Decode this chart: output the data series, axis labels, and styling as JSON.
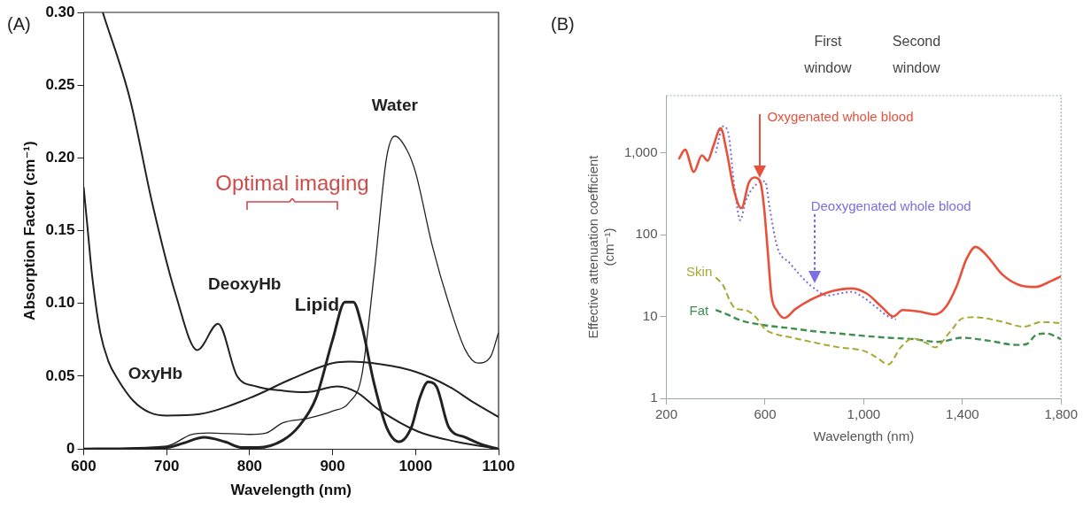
{
  "chart_data": [
    {
      "type": "line",
      "title": "(A)",
      "xlabel": "Wavelength (nm)",
      "ylabel": "Absorption Factor (cm⁻¹)",
      "xlim": [
        600,
        1100
      ],
      "xticks": [
        600,
        700,
        800,
        900,
        1000,
        1100
      ],
      "ylim": [
        0,
        0.3
      ],
      "yticks": [
        0,
        0.05,
        {
          "value": 0.1,
          "label": "0.10"
        },
        0.15,
        {
          "value": 0.2,
          "label": "0.20"
        },
        0.25,
        {
          "value": 0.3,
          "label": "0.30"
        }
      ],
      "grid": false,
      "legend": false,
      "marker": "none",
      "annotations": [
        "Optimal imaging"
      ],
      "series": [
        {
          "name": "DeoxyHb",
          "color": "#222222",
          "x": [
            623,
            656,
            683,
            711,
            737,
            762,
            785,
            808,
            841,
            868,
            906,
            929,
            956,
            1003,
            1049,
            1100
          ],
          "values": [
            0.3,
            0.24,
            0.168,
            0.106,
            0.068,
            0.086,
            0.05,
            0.043,
            0.04,
            0.039,
            0.043,
            0.039,
            0.027,
            0.012,
            0.005,
            0
          ]
        },
        {
          "name": "OxyHb",
          "color": "#222222",
          "x": [
            600,
            605,
            610,
            620,
            630,
            640,
            660,
            680,
            700,
            740,
            800,
            850,
            900,
            920,
            960,
            1000,
            1040,
            1070,
            1100
          ],
          "values": [
            0.18,
            0.15,
            0.12,
            0.08,
            0.06,
            0.049,
            0.033,
            0.025,
            0.023,
            0.024,
            0.035,
            0.048,
            0.059,
            0.06,
            0.058,
            0.053,
            0.043,
            0.032,
            0.022
          ]
        },
        {
          "name": "Water",
          "color": "#222222",
          "x": [
            600,
            700,
            730,
            750,
            800,
            820,
            840,
            870,
            900,
            920,
            935,
            950,
            965,
            975,
            990,
            1000,
            1020,
            1040,
            1060,
            1075,
            1090,
            1100
          ],
          "values": [
            0,
            0.002,
            0.01,
            0.011,
            0.01,
            0.011,
            0.018,
            0.021,
            0.026,
            0.032,
            0.05,
            0.12,
            0.2,
            0.215,
            0.205,
            0.19,
            0.14,
            0.1,
            0.068,
            0.059,
            0.063,
            0.08
          ]
        },
        {
          "name": "Lipid",
          "color": "#222222",
          "x": [
            600,
            700,
            720,
            745,
            770,
            790,
            810,
            840,
            860,
            880,
            900,
            915,
            925,
            935,
            950,
            965,
            980,
            995,
            1005,
            1015,
            1025,
            1040,
            1060,
            1080,
            1100
          ],
          "values": [
            0,
            0.001,
            0.004,
            0.008,
            0.005,
            0.001,
            0.001,
            0.006,
            0.016,
            0.035,
            0.075,
            0.101,
            0.101,
            0.085,
            0.045,
            0.015,
            0.005,
            0.015,
            0.035,
            0.046,
            0.043,
            0.015,
            0.008,
            0.003,
            0
          ]
        }
      ]
    },
    {
      "type": "line",
      "title": "(B)",
      "xlabel": "Wavelength (nm)",
      "ylabel": "Effective attenuation coefficient (cm⁻¹)",
      "xlim": [
        200,
        1800
      ],
      "xticks": [
        200,
        600,
        {
          "value": 1000,
          "label": "1,000"
        },
        {
          "value": 1400,
          "label": "1,400"
        },
        {
          "value": 1800,
          "label": "1,800"
        }
      ],
      "ylim": [
        1,
        5000
      ],
      "yticks": [
        1,
        10,
        100,
        {
          "value": 1000,
          "label": "1,000"
        }
      ],
      "log": "y",
      "grid": false,
      "legend": false,
      "marker": "none",
      "annotations": [
        "First window",
        "Second window"
      ],
      "series": [
        {
          "name": "Oxygenated whole blood",
          "color": "#e8503a",
          "line_style": "solid",
          "x": [
            250,
            276,
            311,
            344,
            367,
            390,
            420,
            443,
            474,
            504,
            534,
            557,
            580,
            595,
            610,
            626,
            648,
            679,
            724,
            785,
            861,
            952,
            1013,
            1074,
            1120,
            1158,
            1226,
            1287,
            1332,
            1378,
            1416,
            1454,
            1500,
            1560,
            1636,
            1697,
            1758,
            1800
          ],
          "values": [
            835,
            1090,
            585,
            930,
            800,
            1200,
            2000,
            1090,
            350,
            210,
            430,
            500,
            450,
            230,
            68,
            18,
            11.8,
            9.6,
            12.4,
            16,
            20,
            22,
            19,
            13,
            10,
            12,
            11.5,
            10.6,
            13,
            24,
            50,
            71,
            55,
            33,
            24,
            23,
            27,
            31
          ]
        },
        {
          "name": "Deoxygenated whole blood",
          "color": "#7a6ee0",
          "line_style": "dotted",
          "x": [
            400,
            430,
            450,
            475,
            500,
            520,
            560,
            600,
            620,
            650,
            700,
            760,
            800,
            850,
            900,
            950,
            1000,
            1050,
            1100,
            1130
          ],
          "values": [
            1000,
            2100,
            1800,
            400,
            150,
            250,
            400,
            450,
            200,
            70,
            45,
            28,
            22,
            18,
            19,
            20,
            17,
            13,
            10,
            9.2
          ]
        },
        {
          "name": "Skin",
          "color": "#a8a832",
          "line_style": "dashed",
          "x": [
            400,
            430,
            460,
            480,
            520,
            560,
            600,
            650,
            700,
            800,
            900,
            1000,
            1050,
            1100,
            1150,
            1200,
            1250,
            1290,
            1350,
            1400,
            1450,
            1550,
            1650,
            1720,
            1800
          ],
          "values": [
            30,
            24,
            15,
            12.5,
            12,
            10,
            7,
            6,
            5.6,
            4.8,
            4.2,
            3.8,
            3.2,
            2.6,
            4.2,
            5.4,
            4.8,
            4.2,
            6.5,
            9.5,
            9.8,
            8.8,
            7.5,
            8.6,
            8.3
          ]
        },
        {
          "name": "Fat",
          "color": "#3f8f4f",
          "line_style": "dashed",
          "x": [
            400,
            450,
            500,
            600,
            700,
            800,
            900,
            1000,
            1100,
            1200,
            1300,
            1400,
            1500,
            1620,
            1660,
            1700,
            1740,
            1800
          ],
          "values": [
            12,
            10.5,
            9,
            7.8,
            7.2,
            6.6,
            6.2,
            5.8,
            5.5,
            5.3,
            4.9,
            5.5,
            5.1,
            4.5,
            4.6,
            6,
            6.2,
            5.3
          ]
        }
      ]
    }
  ]
}
